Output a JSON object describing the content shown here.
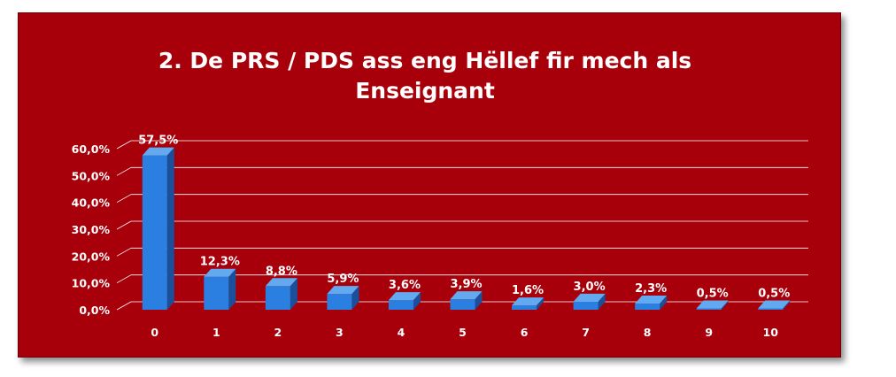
{
  "chart_data": {
    "type": "bar",
    "title_lines": [
      "2. De PRS / PDS ass eng Hëllef fir mech als",
      "Enseignant"
    ],
    "categories": [
      "0",
      "1",
      "2",
      "3",
      "4",
      "5",
      "6",
      "7",
      "8",
      "9",
      "10"
    ],
    "values": [
      57.5,
      12.3,
      8.8,
      5.9,
      3.6,
      3.9,
      1.6,
      3.0,
      2.3,
      0.5,
      0.5
    ],
    "data_labels": [
      "57,5%",
      "12,3%",
      "8,8%",
      "5,9%",
      "3,6%",
      "3,9%",
      "1,6%",
      "3,0%",
      "2,3%",
      "0,5%",
      "0,5%"
    ],
    "yticks": [
      0,
      10,
      20,
      30,
      40,
      50,
      60
    ],
    "ytick_labels": [
      "0,0%",
      "10,0%",
      "20,0%",
      "30,0%",
      "40,0%",
      "50,0%",
      "60,0%"
    ],
    "ylim": [
      0,
      60
    ],
    "grid": true,
    "legend": "none",
    "style": "3d-column"
  },
  "colors": {
    "background": "#a8000a",
    "bar_front": "#2a7fe0",
    "bar_side": "#1a4f9c",
    "bar_top": "#62a9f0",
    "grid": "#ffffff",
    "text": "#ffffff"
  }
}
